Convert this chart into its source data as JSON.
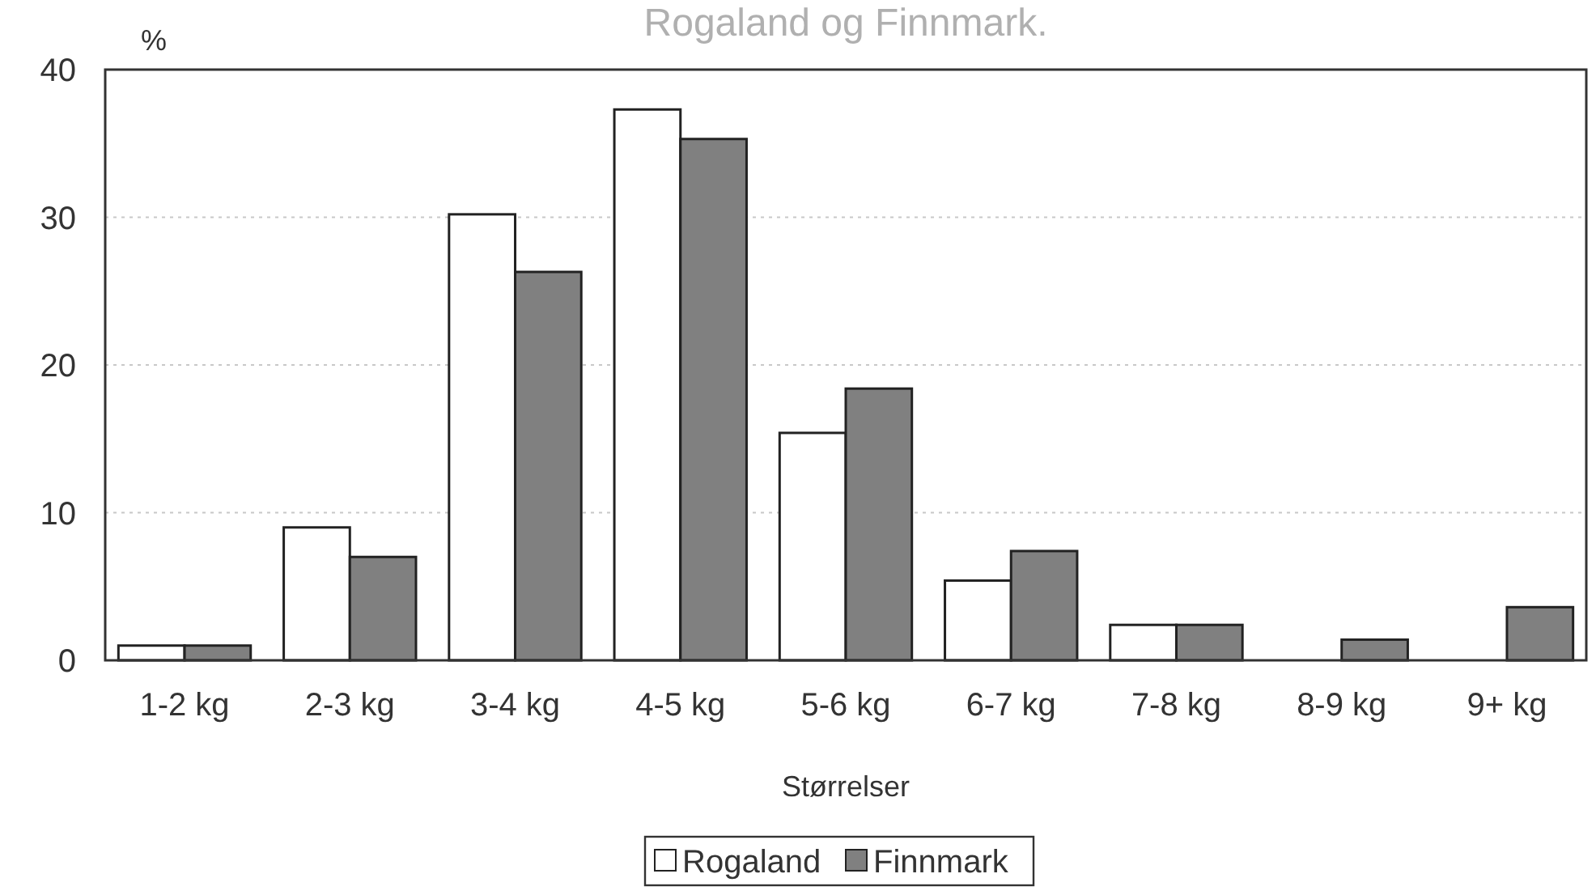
{
  "chart_data": {
    "type": "bar",
    "title": "Rogaland og Finnmark.",
    "xlabel": "Størrelser",
    "ylabel": "%",
    "categories": [
      "1-2 kg",
      "2-3 kg",
      "3-4 kg",
      "4-5 kg",
      "5-6 kg",
      "6-7 kg",
      "7-8 kg",
      "8-9 kg",
      "9+ kg"
    ],
    "series": [
      {
        "name": "Rogaland",
        "color": "#ffffff",
        "values": [
          1,
          9,
          30.2,
          37.3,
          15.4,
          5.4,
          2.4,
          0,
          0
        ]
      },
      {
        "name": "Finnmark",
        "color": "#808080",
        "values": [
          1,
          7,
          26.3,
          35.3,
          18.4,
          7.4,
          2.4,
          1.4,
          3.6
        ]
      }
    ],
    "ylim": [
      0,
      40
    ],
    "yticks": [
      0,
      10,
      20,
      30,
      40
    ],
    "grid": "y",
    "legend": "bottom"
  }
}
